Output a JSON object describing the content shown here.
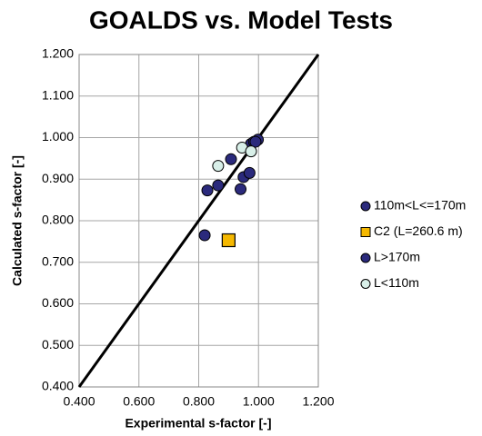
{
  "chart_data": {
    "type": "scatter",
    "title": "GOALDS vs. Model Tests",
    "x_label": "Experimental s-factor [-]",
    "y_label": "Calculated s-factor [-]",
    "xlim": [
      0.4,
      1.2
    ],
    "ylim": [
      0.4,
      1.2
    ],
    "xticks": [
      {
        "value": 0.4,
        "label": "0.400"
      },
      {
        "value": 0.6,
        "label": "0.600"
      },
      {
        "value": 0.8,
        "label": "0.800"
      },
      {
        "value": 1.0,
        "label": "1.000"
      },
      {
        "value": 1.2,
        "label": "1.200"
      }
    ],
    "yticks": [
      {
        "value": 0.4,
        "label": "0.400"
      },
      {
        "value": 0.5,
        "label": "0.500"
      },
      {
        "value": 0.6,
        "label": "0.600"
      },
      {
        "value": 0.7,
        "label": "0.700"
      },
      {
        "value": 0.8,
        "label": "0.800"
      },
      {
        "value": 0.9,
        "label": "0.900"
      },
      {
        "value": 1.0,
        "label": "1.000"
      },
      {
        "value": 1.1,
        "label": "1.100"
      },
      {
        "value": 1.2,
        "label": "1.200"
      }
    ],
    "grid": true,
    "legend": "right",
    "reference_line": {
      "x": [
        0.4,
        1.2
      ],
      "y": [
        0.4,
        1.2
      ],
      "color": "#000000"
    },
    "series": [
      {
        "name": "110m<L<=170m",
        "color": "#2b2a7c",
        "marker": "circle",
        "x": [
          0.82,
          0.829,
          0.865,
          0.908,
          0.94,
          0.95,
          0.97,
          0.97,
          0.975,
          0.985,
          0.998
        ],
        "values": [
          0.765,
          0.873,
          0.885,
          0.948,
          0.876,
          0.905,
          0.915,
          0.975,
          0.985,
          0.99,
          0.995
        ]
      },
      {
        "name": "C2 (L=260.6 m)",
        "color": "#f5b800",
        "marker": "square",
        "x": [
          0.9
        ],
        "values": [
          0.753
        ]
      },
      {
        "name": "L>170m",
        "color": "#2b2a7c",
        "marker": "circle",
        "x": [
          0.99
        ],
        "values": [
          0.99
        ]
      },
      {
        "name": "L<110m",
        "color": "#d8efe8",
        "marker": "circle",
        "x": [
          0.865,
          0.945,
          0.975
        ],
        "values": [
          0.932,
          0.976,
          0.967
        ]
      }
    ]
  }
}
